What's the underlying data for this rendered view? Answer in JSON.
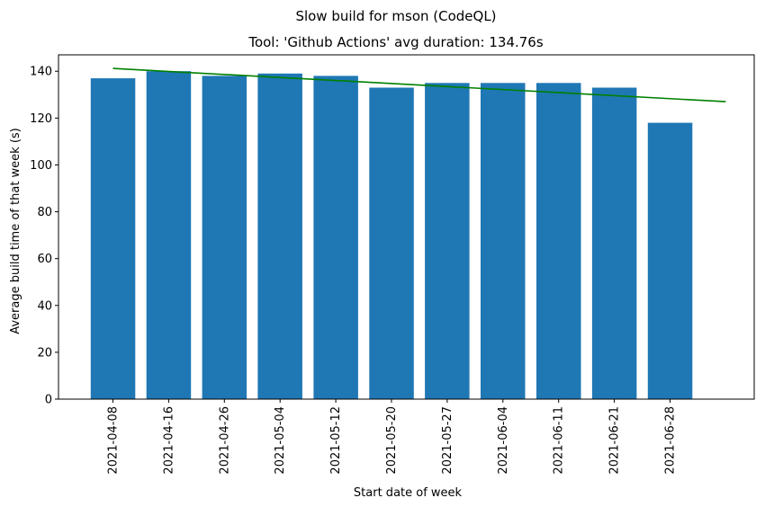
{
  "figure": {
    "suptitle": "Slow build for mson (CodeQL)"
  },
  "chart_data": {
    "type": "bar",
    "title": "Tool: 'Github Actions' avg duration: 134.76s",
    "xlabel": "Start date of week",
    "ylabel": "Average build time of that week (s)",
    "categories": [
      "2021-04-08",
      "2021-04-16",
      "2021-04-26",
      "2021-05-04",
      "2021-05-12",
      "2021-05-20",
      "2021-05-27",
      "2021-06-04",
      "2021-06-11",
      "2021-06-21",
      "2021-06-28"
    ],
    "values": [
      137,
      140,
      138,
      139,
      138,
      133,
      135,
      135,
      135,
      133,
      118
    ],
    "yticks": [
      0,
      20,
      40,
      60,
      80,
      100,
      120,
      140
    ],
    "ylim": [
      0,
      147
    ],
    "trend_line": {
      "start": 141.2,
      "end": 127.0,
      "color": "#008000"
    },
    "bar_color": "#1f77b4",
    "grid": false,
    "legend": "none"
  }
}
